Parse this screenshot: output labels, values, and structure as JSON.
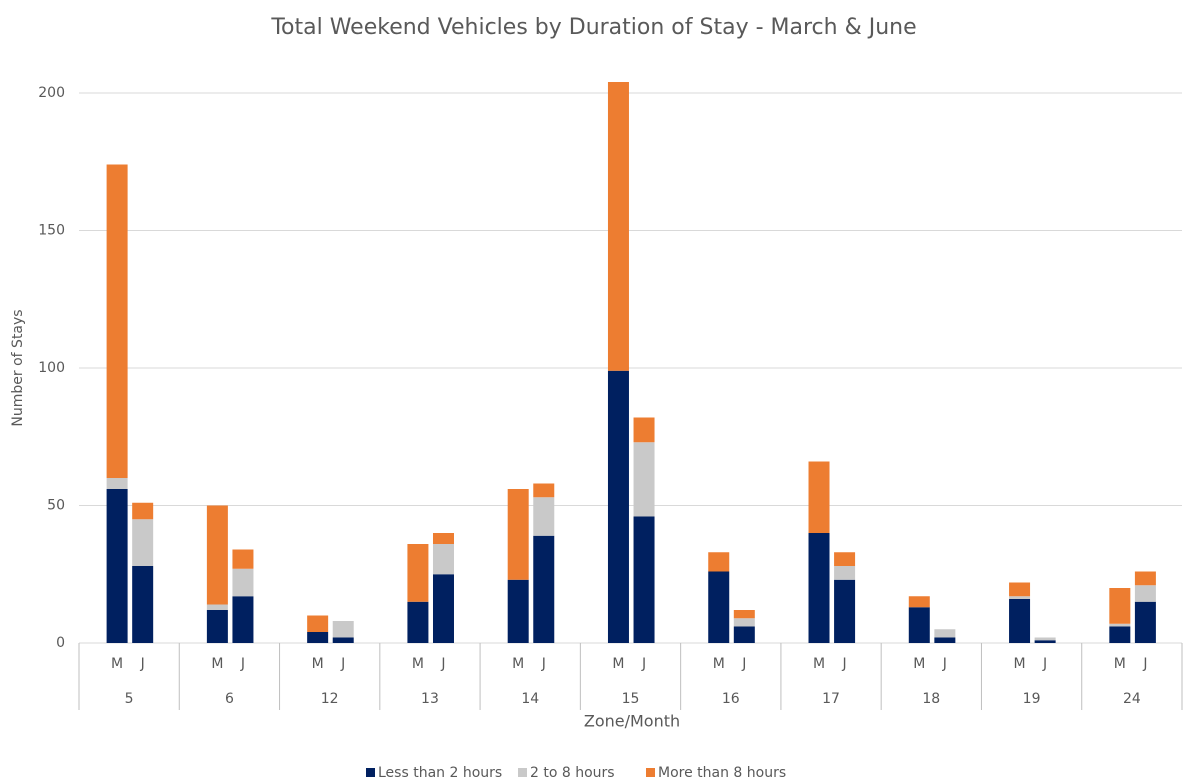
{
  "chart_data": {
    "type": "stacked_bar",
    "title": "Total Weekend Vehicles by Duration of Stay - March & June",
    "x_label": "Zone/Month",
    "y_label": "Number of Stays",
    "categories": [
      "M",
      "J",
      "M",
      "J",
      "M",
      "J",
      "M",
      "J",
      "M",
      "J",
      "M",
      "J",
      "M",
      "J",
      "M",
      "J",
      "M",
      "J",
      "M",
      "J",
      "M",
      "J"
    ],
    "groups": [
      "5",
      "6",
      "12",
      "13",
      "14",
      "15",
      "16",
      "17",
      "18",
      "19",
      "24"
    ],
    "series": [
      {
        "name": "Less than 2 hours",
        "color": "#002060",
        "values": [
          56,
          28,
          12,
          17,
          4,
          2,
          15,
          25,
          23,
          39,
          99,
          46,
          26,
          6,
          40,
          23,
          13,
          2,
          16,
          1,
          6,
          15
        ]
      },
      {
        "name": "2 to 8 hours",
        "color": "#c9c9c9",
        "values": [
          4,
          17,
          2,
          10,
          0,
          6,
          0,
          11,
          0,
          14,
          0,
          27,
          0,
          3,
          0,
          5,
          0,
          3,
          1,
          1,
          1,
          6
        ]
      },
      {
        "name": "More than 8 hours",
        "color": "#ed7d31",
        "values": [
          114,
          6,
          36,
          7,
          6,
          0,
          21,
          4,
          33,
          5,
          105,
          9,
          7,
          3,
          26,
          5,
          4,
          0,
          5,
          0,
          13,
          5
        ]
      }
    ],
    "ylim": [
      0,
      200
    ],
    "yticks": [
      0,
      50,
      100,
      150,
      200
    ],
    "grid": true,
    "legend": "bottom"
  }
}
